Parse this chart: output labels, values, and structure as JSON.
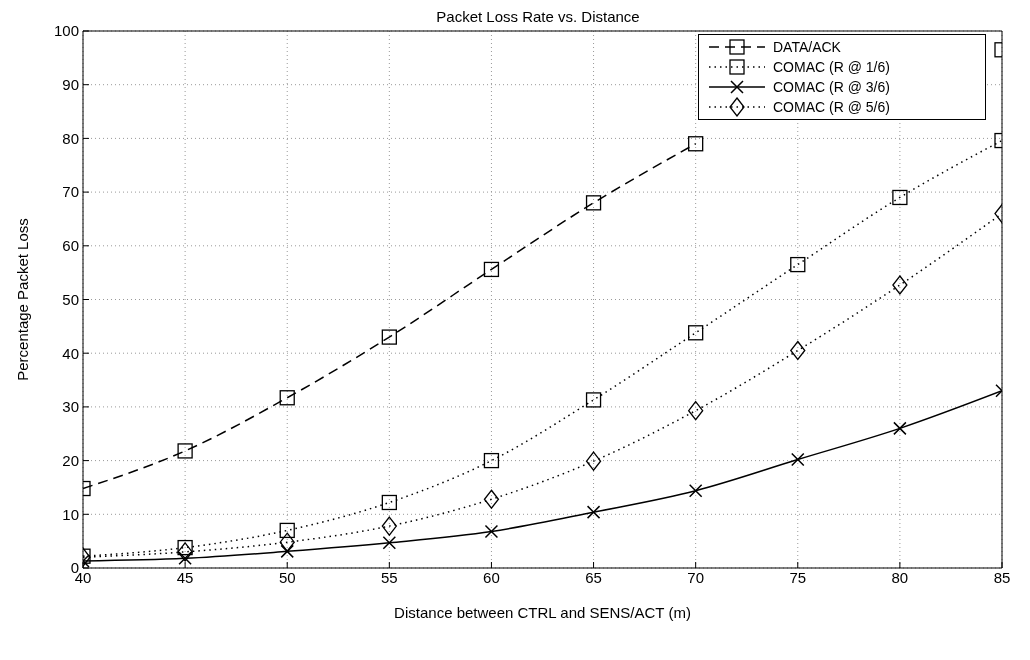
{
  "chart_data": {
    "type": "line",
    "title": "Packet Loss Rate vs. Distance",
    "xlabel": "Distance between CTRL and SENS/ACT (m)",
    "ylabel": "Percentage Packet Loss",
    "x": [
      40,
      45,
      50,
      55,
      60,
      65,
      70,
      75,
      80,
      85
    ],
    "series": [
      {
        "name": "DATA/ACK",
        "color": "#000000",
        "marker": "square",
        "line_style": "dashed",
        "values": [
          14.8,
          21.8,
          31.7,
          43,
          55.6,
          68,
          79,
          null,
          null,
          96.5
        ]
      },
      {
        "name": "COMAC (R @ 1/6)",
        "color": "#000000",
        "marker": "square",
        "line_style": "dotted",
        "values": [
          2.2,
          3.8,
          7,
          12.2,
          20,
          31.3,
          43.8,
          56.5,
          69,
          79.6
        ]
      },
      {
        "name": "COMAC (R @ 3/6)",
        "color": "#000000",
        "marker": "cross",
        "line_style": "solid",
        "values": [
          1.3,
          1.8,
          3.1,
          4.7,
          6.8,
          10.4,
          14.4,
          20.2,
          26,
          33
        ]
      },
      {
        "name": "COMAC (R @ 5/6)",
        "color": "#000000",
        "marker": "diamond",
        "line_style": "dotted",
        "values": [
          2,
          3,
          4.8,
          7.8,
          12.8,
          19.9,
          29.3,
          40.5,
          52.7,
          66
        ]
      }
    ],
    "xlim": [
      40,
      85
    ],
    "xticks": [
      40,
      45,
      50,
      55,
      60,
      65,
      70,
      75,
      80,
      85
    ],
    "ylim": [
      0,
      100
    ],
    "yticks": [
      0,
      10,
      20,
      30,
      40,
      50,
      60,
      70,
      80,
      90,
      100
    ],
    "grid": true,
    "legend": "top right"
  }
}
